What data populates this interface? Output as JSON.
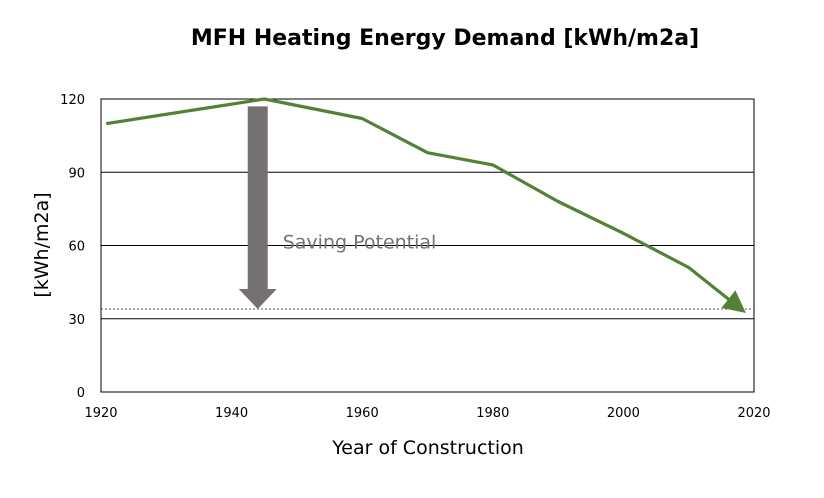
{
  "chart_data": {
    "type": "line",
    "title": "MFH Heating Energy Demand [kWh/m2a]",
    "xlabel": "Year of Construction",
    "ylabel": "[kWh/m2a]",
    "xlim": [
      1920,
      2020
    ],
    "ylim": [
      0,
      120
    ],
    "x_ticks": [
      1920,
      1940,
      1960,
      1980,
      2000,
      2020
    ],
    "y_ticks": [
      0,
      30,
      60,
      90,
      120
    ],
    "grid": "horizontal",
    "series": [
      {
        "color": "#548235",
        "x": [
          1921,
          1945,
          1960,
          1970,
          1980,
          1990,
          2000,
          2010,
          2018
        ],
        "y": [
          110,
          120,
          112,
          98,
          93,
          78,
          65,
          51,
          34
        ]
      }
    ],
    "reference_line": {
      "y": 34,
      "style": "dotted"
    },
    "annotation": {
      "text": "Saving Potential",
      "arrow_x": 1944,
      "arrow_from": 117,
      "arrow_to": 34,
      "arrow_color": "#767171",
      "text_color": "#767171"
    }
  }
}
